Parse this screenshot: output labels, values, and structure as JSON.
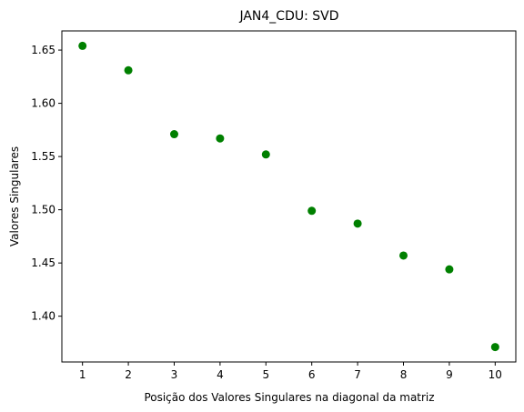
{
  "chart_data": {
    "type": "scatter",
    "title": "JAN4_CDU: SVD",
    "xlabel": "Posição dos Valores Singulares na diagonal da matriz",
    "ylabel": "Valores Singulares",
    "x": [
      1,
      2,
      3,
      4,
      5,
      6,
      7,
      8,
      9,
      10
    ],
    "y": [
      1.654,
      1.631,
      1.571,
      1.567,
      1.552,
      1.499,
      1.487,
      1.457,
      1.444,
      1.371
    ],
    "xticks": [
      1,
      2,
      3,
      4,
      5,
      6,
      7,
      8,
      9,
      10
    ],
    "yticks": [
      1.4,
      1.45,
      1.5,
      1.55,
      1.6,
      1.65
    ],
    "ytick_labels": [
      "1.40",
      "1.45",
      "1.50",
      "1.55",
      "1.60",
      "1.65"
    ],
    "xlim": [
      0.55,
      10.45
    ],
    "ylim": [
      1.357,
      1.668
    ],
    "marker_color": "#008000",
    "grid": false
  }
}
